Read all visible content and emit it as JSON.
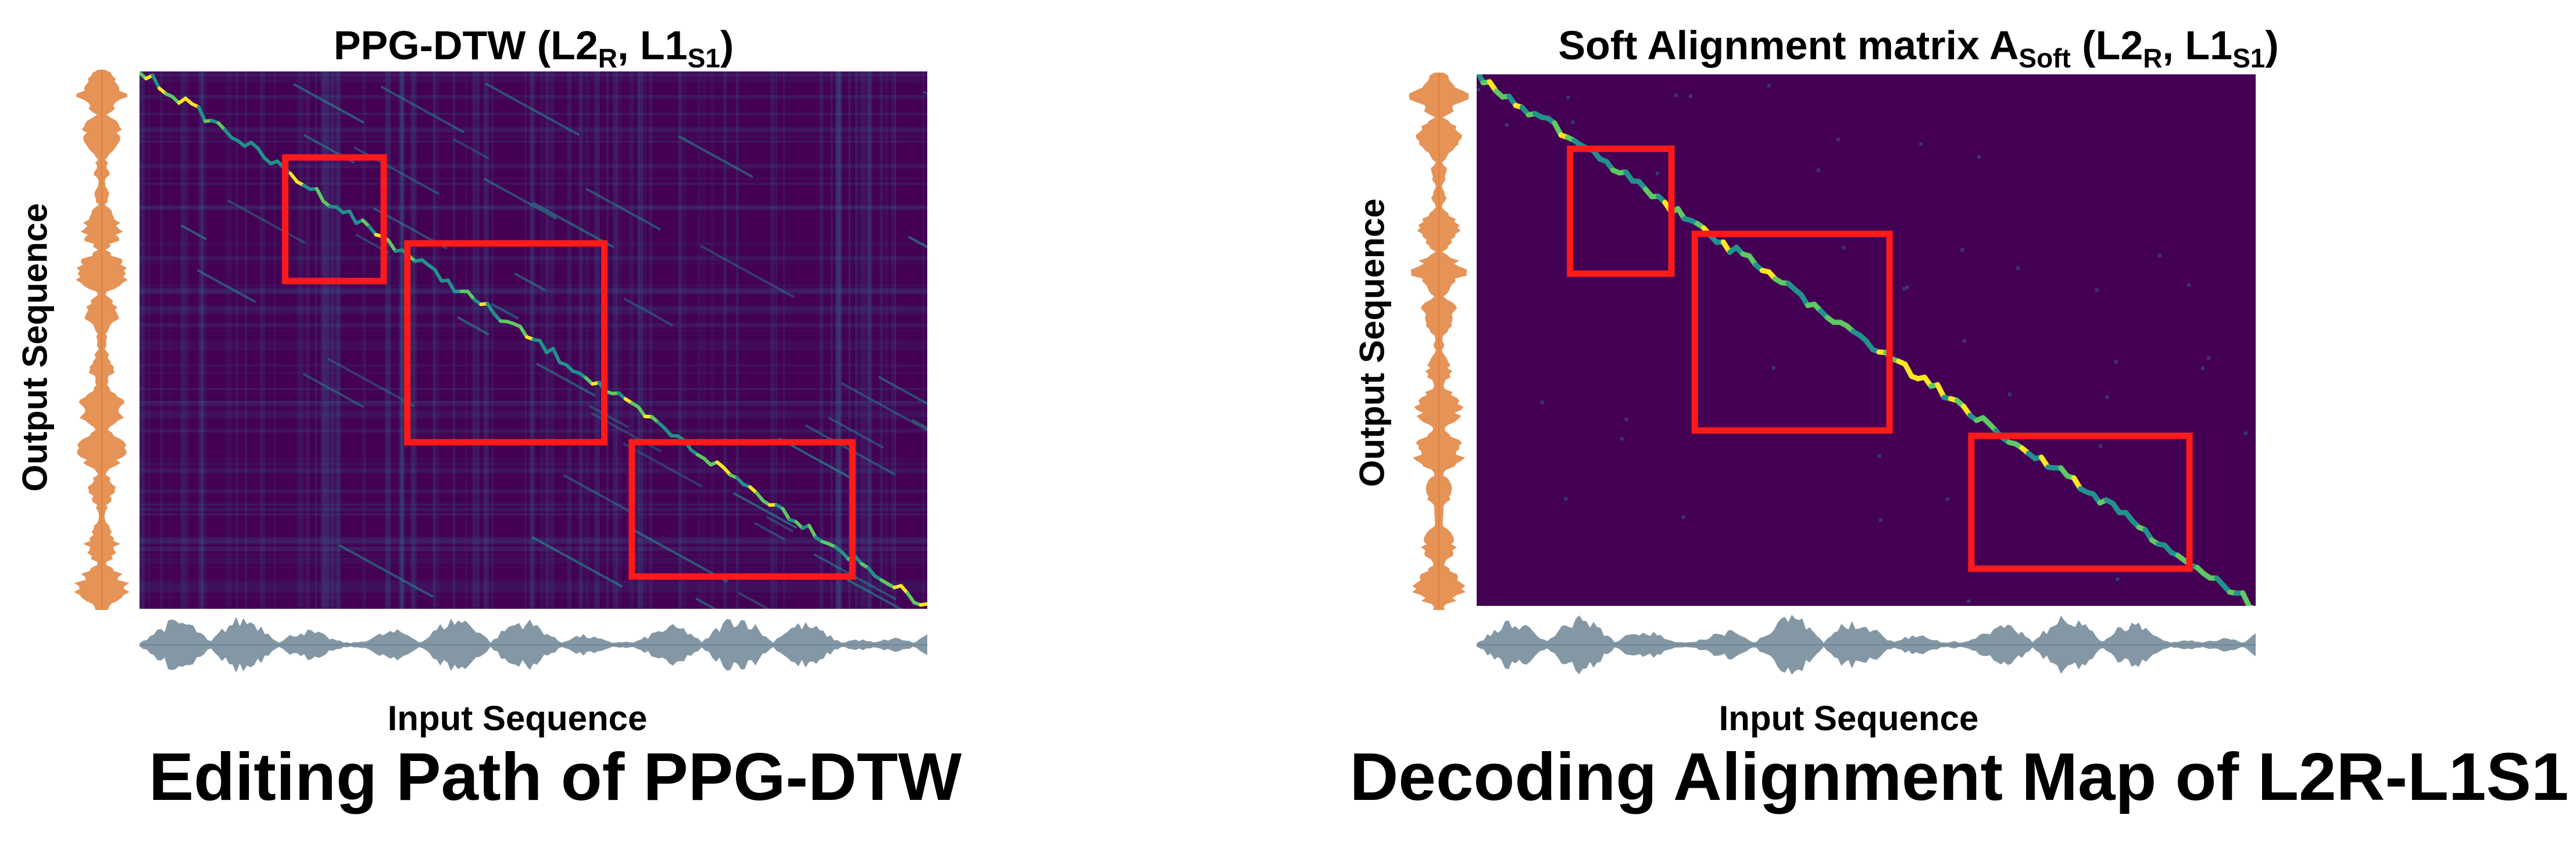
{
  "colors": {
    "viridis_dark": "#440154",
    "viridis_mid": "#31688e",
    "viridis_teal": "#21918c",
    "viridis_green": "#5ec962",
    "viridis_yellow": "#fde725",
    "highlight_box": "#ff1a1a",
    "output_wave": "#e0803a",
    "input_wave": "#6f8595"
  },
  "left": {
    "title_main": "PPG-DTW (L2",
    "title_sub_r": "R",
    "title_mid": ", L1",
    "title_sub_s": "S1",
    "title_end": ")",
    "ylabel": "Output Sequence",
    "xlabel": "Input Sequence",
    "caption": "Editing Path of PPG-DTW"
  },
  "right": {
    "title_main": "Soft Alignment matrix A",
    "title_sub_soft": "Soft",
    "title_mid1": " (L2",
    "title_sub_r": "R",
    "title_mid2": ", L1",
    "title_sub_s": "S1",
    "title_end": ")",
    "ylabel": "Output Sequence",
    "xlabel": "Input Sequence",
    "caption": "Decoding Alignment Map of L2R-L1S1"
  }
}
